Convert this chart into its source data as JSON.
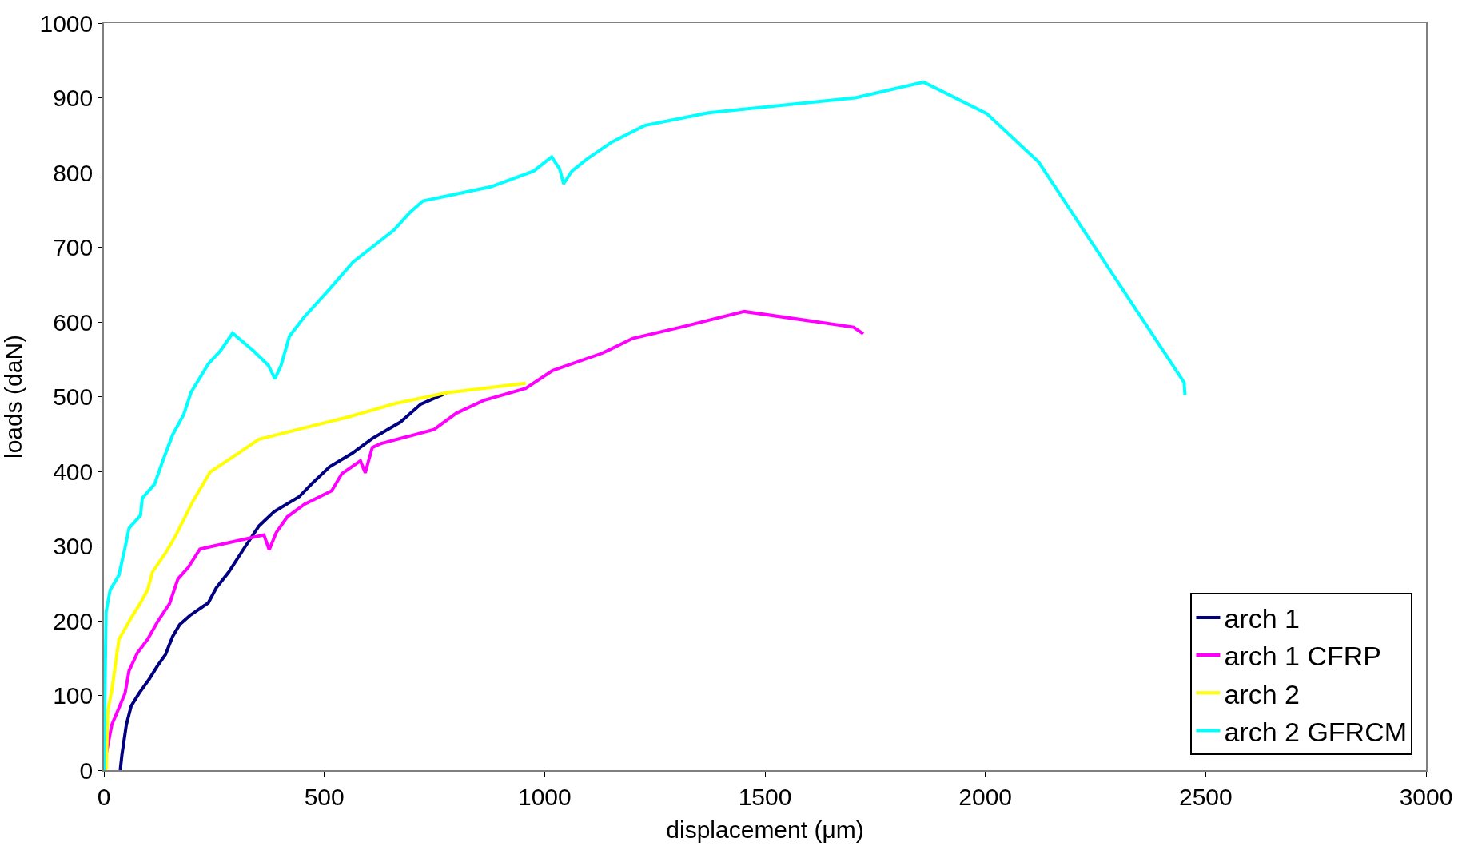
{
  "chart_data": {
    "type": "line",
    "xlabel": "displacement (μm)",
    "ylabel": "loads (daN)",
    "xlim": [
      0,
      3000
    ],
    "ylim": [
      0,
      1000
    ],
    "xticks": [
      0,
      500,
      1000,
      1500,
      2000,
      2500,
      3000
    ],
    "yticks": [
      0,
      100,
      200,
      300,
      400,
      500,
      600,
      700,
      800,
      900,
      1000
    ],
    "legend": "bottom right",
    "marker": "none",
    "line_style": "solid",
    "series": [
      {
        "name": "arch 1",
        "color": "#000080",
        "x": [
          37,
          41,
          51,
          62,
          80,
          103,
          122,
          140,
          156,
          172,
          195,
          237,
          255,
          283,
          317,
          352,
          386,
          443,
          471,
          512,
          563,
          609,
          673,
          719,
          777
        ],
        "values": [
          0,
          21,
          61,
          86,
          103,
          122,
          140,
          155,
          179,
          195,
          207,
          224,
          244,
          265,
          296,
          327,
          346,
          366,
          383,
          406,
          424,
          444,
          466,
          490,
          505
        ]
      },
      {
        "name": "arch 1 CFRP",
        "color": "#ff00ff",
        "x": [
          0,
          5,
          18,
          34,
          48,
          57,
          76,
          99,
          122,
          149,
          168,
          191,
          218,
          363,
          375,
          391,
          416,
          455,
          517,
          540,
          582,
          593,
          609,
          628,
          749,
          800,
          862,
          957,
          1018,
          1130,
          1200,
          1316,
          1453,
          1701,
          1723
        ],
        "values": [
          0,
          21,
          61,
          83,
          103,
          133,
          157,
          175,
          199,
          223,
          256,
          271,
          296,
          315,
          295,
          318,
          339,
          356,
          374,
          397,
          414,
          398,
          432,
          437,
          456,
          478,
          495,
          511,
          535,
          558,
          578,
          594,
          614,
          593,
          584
        ]
      },
      {
        "name": "arch 2",
        "color": "#ffff00",
        "x": [
          5,
          9,
          18,
          34,
          64,
          80,
          99,
          110,
          140,
          163,
          202,
          241,
          294,
          352,
          467,
          556,
          662,
          777,
          957
        ],
        "values": [
          0,
          80,
          107,
          175,
          206,
          221,
          241,
          265,
          291,
          314,
          360,
          399,
          420,
          443,
          460,
          473,
          491,
          505,
          518
        ]
      },
      {
        "name": "arch 2 GFRCM",
        "color": "#00ffff",
        "x": [
          0,
          2,
          5,
          14,
          34,
          48,
          57,
          83,
          87,
          115,
          136,
          156,
          181,
          198,
          237,
          264,
          292,
          340,
          373,
          388,
          402,
          421,
          455,
          512,
          565,
          658,
          695,
          724,
          878,
          975,
          1016,
          1034,
          1043,
          1062,
          1096,
          1153,
          1227,
          1372,
          1705,
          1860,
          2003,
          2121,
          2451,
          2453
        ],
        "values": [
          0,
          94,
          212,
          241,
          261,
          298,
          324,
          341,
          364,
          383,
          418,
          449,
          476,
          506,
          544,
          561,
          585,
          561,
          542,
          524,
          542,
          581,
          607,
          644,
          680,
          723,
          747,
          762,
          781,
          802,
          821,
          805,
          785,
          802,
          818,
          841,
          863,
          880,
          900,
          921,
          879,
          814,
          519,
          502
        ]
      }
    ]
  }
}
